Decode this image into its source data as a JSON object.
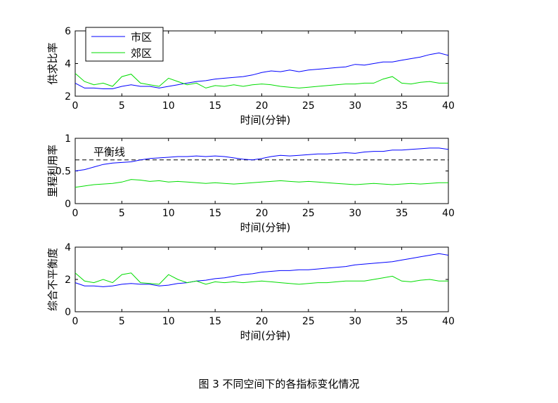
{
  "caption": "图 3 不同空间下的各指标变化情况",
  "colors": {
    "urban": "#0000ff",
    "suburban": "#00dd00",
    "axis": "#000000",
    "balance_line": "#000000"
  },
  "chart_data": [
    {
      "type": "line",
      "xlabel": "时间(分钟)",
      "ylabel": "供求比率",
      "xlim": [
        0,
        40
      ],
      "ylim": [
        2,
        6
      ],
      "xticks": [
        "0",
        "5",
        "10",
        "15",
        "20",
        "25",
        "30",
        "35",
        "40"
      ],
      "yticks": [
        "2",
        "4",
        "6"
      ],
      "legend": {
        "placement": "top-left"
      },
      "series": [
        {
          "name": "市区",
          "color": "#0000ff",
          "x": [
            0,
            1,
            2,
            3,
            4,
            5,
            6,
            7,
            8,
            9,
            10,
            11,
            12,
            13,
            14,
            15,
            16,
            17,
            18,
            19,
            20,
            21,
            22,
            23,
            24,
            25,
            26,
            27,
            28,
            29,
            30,
            31,
            32,
            33,
            34,
            35,
            36,
            37,
            38,
            39,
            40
          ],
          "values": [
            2.8,
            2.5,
            2.5,
            2.45,
            2.45,
            2.6,
            2.7,
            2.6,
            2.6,
            2.5,
            2.6,
            2.7,
            2.8,
            2.9,
            2.95,
            3.05,
            3.1,
            3.15,
            3.2,
            3.3,
            3.45,
            3.55,
            3.5,
            3.6,
            3.5,
            3.6,
            3.65,
            3.7,
            3.75,
            3.8,
            3.95,
            3.9,
            4.0,
            4.1,
            4.1,
            4.2,
            4.3,
            4.4,
            4.55,
            4.65,
            4.5
          ]
        },
        {
          "name": "郊区",
          "color": "#00dd00",
          "x": [
            0,
            1,
            2,
            3,
            4,
            5,
            6,
            7,
            8,
            9,
            10,
            11,
            12,
            13,
            14,
            15,
            16,
            17,
            18,
            19,
            20,
            21,
            22,
            23,
            24,
            25,
            26,
            27,
            28,
            29,
            30,
            31,
            32,
            33,
            34,
            35,
            36,
            37,
            38,
            39,
            40
          ],
          "values": [
            3.4,
            2.9,
            2.7,
            2.8,
            2.6,
            3.2,
            3.35,
            2.8,
            2.7,
            2.6,
            3.1,
            2.9,
            2.7,
            2.8,
            2.5,
            2.65,
            2.6,
            2.7,
            2.6,
            2.7,
            2.75,
            2.7,
            2.6,
            2.55,
            2.5,
            2.55,
            2.6,
            2.65,
            2.7,
            2.75,
            2.75,
            2.8,
            2.8,
            3.05,
            3.2,
            2.8,
            2.75,
            2.85,
            2.9,
            2.8,
            2.8
          ]
        }
      ]
    },
    {
      "type": "line",
      "xlabel": "时间(分钟)",
      "ylabel": "里程利用率",
      "xlim": [
        0,
        40
      ],
      "ylim": [
        0,
        1
      ],
      "xticks": [
        "0",
        "5",
        "10",
        "15",
        "20",
        "25",
        "30",
        "35",
        "40"
      ],
      "yticks": [
        "0",
        "0.5",
        "1"
      ],
      "reference_line": {
        "label": "平衡线",
        "value": 0.67,
        "style": "dashed"
      },
      "series": [
        {
          "name": "市区",
          "color": "#0000ff",
          "x": [
            0,
            1,
            2,
            3,
            4,
            5,
            6,
            7,
            8,
            9,
            10,
            11,
            12,
            13,
            14,
            15,
            16,
            17,
            18,
            19,
            20,
            21,
            22,
            23,
            24,
            25,
            26,
            27,
            28,
            29,
            30,
            31,
            32,
            33,
            34,
            35,
            36,
            37,
            38,
            39,
            40
          ],
          "values": [
            0.5,
            0.52,
            0.56,
            0.6,
            0.62,
            0.63,
            0.64,
            0.67,
            0.69,
            0.7,
            0.71,
            0.72,
            0.72,
            0.73,
            0.72,
            0.73,
            0.72,
            0.7,
            0.68,
            0.67,
            0.69,
            0.72,
            0.74,
            0.73,
            0.74,
            0.75,
            0.76,
            0.76,
            0.77,
            0.78,
            0.77,
            0.79,
            0.8,
            0.8,
            0.82,
            0.82,
            0.83,
            0.84,
            0.85,
            0.85,
            0.83
          ]
        },
        {
          "name": "郊区",
          "color": "#00dd00",
          "x": [
            0,
            1,
            2,
            3,
            4,
            5,
            6,
            7,
            8,
            9,
            10,
            11,
            12,
            13,
            14,
            15,
            16,
            17,
            18,
            19,
            20,
            21,
            22,
            23,
            24,
            25,
            26,
            27,
            28,
            29,
            30,
            31,
            32,
            33,
            34,
            35,
            36,
            37,
            38,
            39,
            40
          ],
          "values": [
            0.25,
            0.27,
            0.29,
            0.3,
            0.31,
            0.33,
            0.37,
            0.36,
            0.34,
            0.35,
            0.33,
            0.34,
            0.33,
            0.32,
            0.31,
            0.32,
            0.31,
            0.3,
            0.31,
            0.32,
            0.33,
            0.34,
            0.35,
            0.34,
            0.33,
            0.34,
            0.33,
            0.32,
            0.31,
            0.3,
            0.29,
            0.3,
            0.31,
            0.3,
            0.29,
            0.3,
            0.31,
            0.3,
            0.31,
            0.32,
            0.32
          ]
        }
      ]
    },
    {
      "type": "line",
      "xlabel": "时间(分钟)",
      "ylabel": "综合不平衡度",
      "xlim": [
        0,
        40
      ],
      "ylim": [
        0,
        4
      ],
      "xticks": [
        "0",
        "5",
        "10",
        "15",
        "20",
        "25",
        "30",
        "35",
        "40"
      ],
      "yticks": [
        "0",
        "2",
        "4"
      ],
      "series": [
        {
          "name": "市区",
          "color": "#0000ff",
          "x": [
            0,
            1,
            2,
            3,
            4,
            5,
            6,
            7,
            8,
            9,
            10,
            11,
            12,
            13,
            14,
            15,
            16,
            17,
            18,
            19,
            20,
            21,
            22,
            23,
            24,
            25,
            26,
            27,
            28,
            29,
            30,
            31,
            32,
            33,
            34,
            35,
            36,
            37,
            38,
            39,
            40
          ],
          "values": [
            1.8,
            1.6,
            1.6,
            1.55,
            1.6,
            1.7,
            1.75,
            1.7,
            1.7,
            1.6,
            1.65,
            1.75,
            1.8,
            1.9,
            1.95,
            2.05,
            2.1,
            2.2,
            2.3,
            2.35,
            2.45,
            2.5,
            2.55,
            2.55,
            2.6,
            2.6,
            2.65,
            2.7,
            2.75,
            2.8,
            2.9,
            2.95,
            3.0,
            3.05,
            3.1,
            3.2,
            3.3,
            3.4,
            3.5,
            3.6,
            3.5
          ]
        },
        {
          "name": "郊区",
          "color": "#00dd00",
          "x": [
            0,
            1,
            2,
            3,
            4,
            5,
            6,
            7,
            8,
            9,
            10,
            11,
            12,
            13,
            14,
            15,
            16,
            17,
            18,
            19,
            20,
            21,
            22,
            23,
            24,
            25,
            26,
            27,
            28,
            29,
            30,
            31,
            32,
            33,
            34,
            35,
            36,
            37,
            38,
            39,
            40
          ],
          "values": [
            2.4,
            1.9,
            1.8,
            2.0,
            1.8,
            2.3,
            2.4,
            1.8,
            1.75,
            1.7,
            2.3,
            2.0,
            1.8,
            1.9,
            1.7,
            1.85,
            1.8,
            1.85,
            1.8,
            1.85,
            1.9,
            1.85,
            1.8,
            1.75,
            1.7,
            1.75,
            1.8,
            1.8,
            1.85,
            1.9,
            1.9,
            1.9,
            2.0,
            2.1,
            2.2,
            1.9,
            1.85,
            1.95,
            2.0,
            1.9,
            1.9
          ]
        }
      ]
    }
  ]
}
